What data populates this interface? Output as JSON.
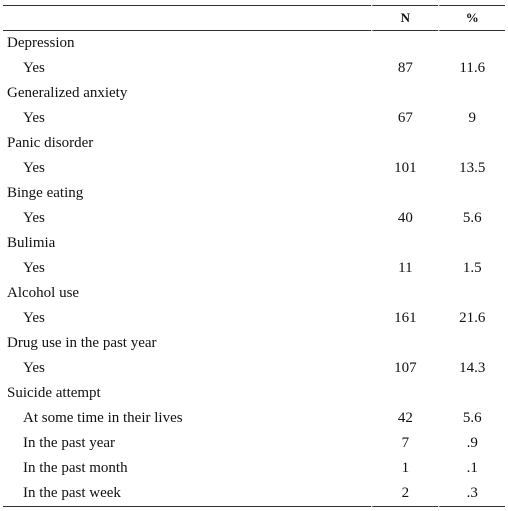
{
  "table": {
    "header": {
      "n": "N",
      "pct": "%"
    },
    "groups": [
      {
        "label": "Depression",
        "rows": [
          [
            "Yes",
            "87",
            "11.6"
          ]
        ]
      },
      {
        "label": "Generalized anxiety",
        "rows": [
          [
            "Yes",
            "67",
            "9"
          ]
        ]
      },
      {
        "label": "Panic disorder",
        "rows": [
          [
            "Yes",
            "101",
            "13.5"
          ]
        ]
      },
      {
        "label": "Binge eating",
        "rows": [
          [
            "Yes",
            "40",
            "5.6"
          ]
        ]
      },
      {
        "label": "Bulimia",
        "rows": [
          [
            "Yes",
            "11",
            "1.5"
          ]
        ]
      },
      {
        "label": "Alcohol use",
        "rows": [
          [
            "Yes",
            "161",
            "21.6"
          ]
        ]
      },
      {
        "label": "Drug use in the past year",
        "rows": [
          [
            "Yes",
            "107",
            "14.3"
          ]
        ]
      },
      {
        "label": "Suicide attempt",
        "rows": [
          [
            "At some time in their lives",
            "42",
            "5.6"
          ],
          [
            "In the past year",
            "7",
            ".9"
          ],
          [
            "In the past month",
            "1",
            ".1"
          ],
          [
            "In the past week",
            "2",
            ".3"
          ]
        ]
      }
    ]
  }
}
